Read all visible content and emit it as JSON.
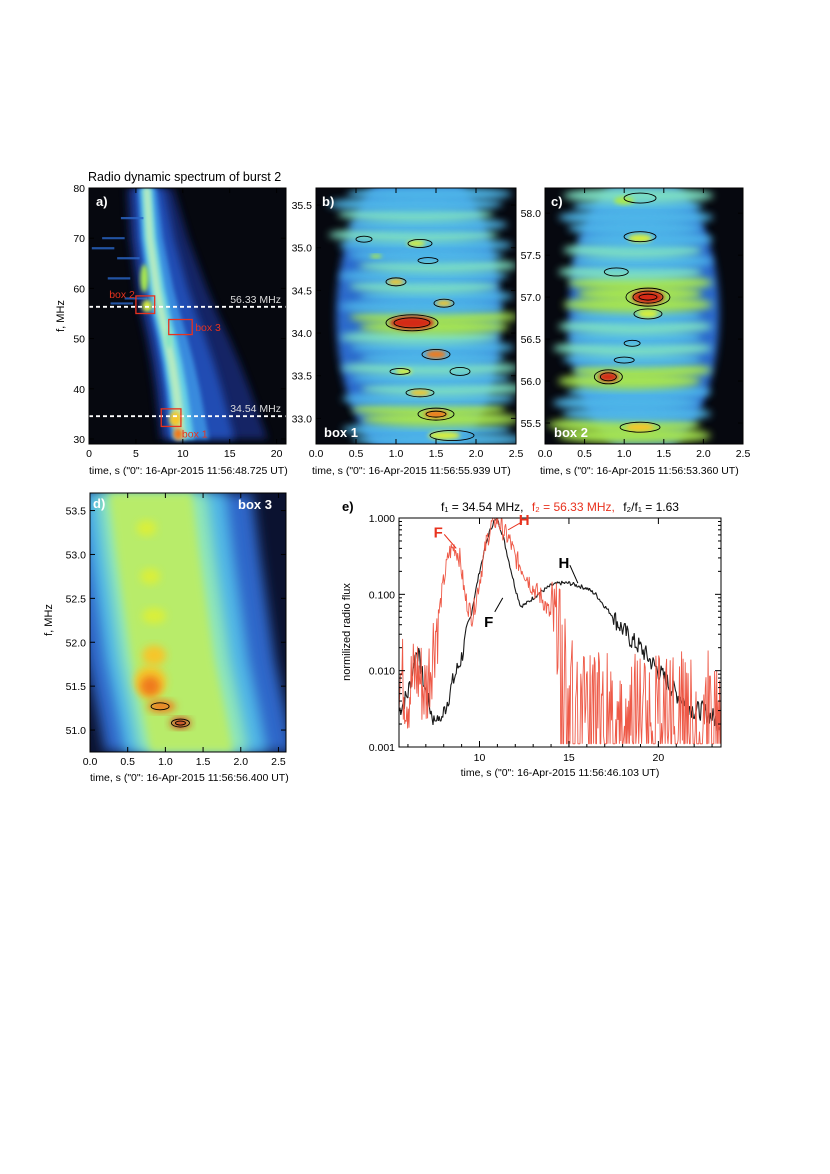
{
  "colors": {
    "panel_bg": "#06080f",
    "axis": "#000000",
    "box_red": "#e8321e",
    "dashed_white": "#ffffff",
    "marker_label_gray": "#dcdcdc",
    "f1_curve": "#1a1a1a",
    "f2_curve": "#ee5a48",
    "f2_label": "#e8321e"
  },
  "panel_a": {
    "title": "Radio dynamic spectrum of burst 2",
    "letter": "a)",
    "ylabel": "f, MHz",
    "xlabel": "time, s (\"0\": 16-Apr-2015 11:56:48.725 UT)",
    "xticks": [
      "0",
      "5",
      "10",
      "15",
      "20"
    ],
    "yticks": [
      "30",
      "40",
      "50",
      "60",
      "70",
      "80"
    ],
    "xlim": [
      0,
      21
    ],
    "ylim": [
      29,
      80
    ],
    "markers": [
      {
        "label": "56.33 MHz",
        "freq": 56.33
      },
      {
        "label": "34.54 MHz",
        "freq": 34.54
      }
    ],
    "boxes": [
      {
        "label": "box 1",
        "t0": 7.7,
        "t1": 9.8,
        "f0": 32.5,
        "f1": 36.0
      },
      {
        "label": "box 2",
        "t0": 5.0,
        "t1": 7.0,
        "f0": 55.0,
        "f1": 58.5
      },
      {
        "label": "box 3",
        "t0": 8.5,
        "t1": 11.0,
        "f0": 50.8,
        "f1": 53.8
      }
    ]
  },
  "panel_b": {
    "letter": "b)",
    "box_label": "box 1",
    "xlabel": "time, s (\"0\": 16-Apr-2015 11:56:55.939 UT)",
    "xticks": [
      "0.0",
      "0.5",
      "1.0",
      "1.5",
      "2.0",
      "2.5"
    ],
    "yticks": [
      "33.0",
      "33.5",
      "34.0",
      "34.5",
      "35.0",
      "35.5"
    ],
    "xlim": [
      0,
      2.5
    ],
    "ylim": [
      32.7,
      35.7
    ]
  },
  "panel_c": {
    "letter": "c)",
    "box_label": "box 2",
    "xlabel": "time, s (\"0\": 16-Apr-2015 11:56:53.360 UT)",
    "xticks": [
      "0.0",
      "0.5",
      "1.0",
      "1.5",
      "2.0",
      "2.5"
    ],
    "yticks": [
      "55.5",
      "56.0",
      "56.5",
      "57.0",
      "57.5",
      "58.0"
    ],
    "xlim": [
      0,
      2.5
    ],
    "ylim": [
      55.25,
      58.3
    ]
  },
  "panel_d": {
    "letter": "d)",
    "box_label": "box 3",
    "ylabel": "f, MHz",
    "xlabel": "time, s (\"0\": 16-Apr-2015 11:56:56.400 UT)",
    "xticks": [
      "0.0",
      "0.5",
      "1.0",
      "1.5",
      "2.0",
      "2.5"
    ],
    "yticks": [
      "51.0",
      "51.5",
      "52.0",
      "52.5",
      "53.0",
      "53.5"
    ],
    "xlim": [
      0,
      2.6
    ],
    "ylim": [
      50.75,
      53.7
    ]
  },
  "panel_e": {
    "letter": "e)",
    "title_f1": "f₁ = 34.54 MHz,",
    "title_f2": "f₂ = 56.33 MHz,",
    "title_ratio": "f₂/f₁ = 1.63",
    "ylabel": "normilized radio flux",
    "xlabel": "time, s (\"0\": 16-Apr-2015 11:56:46.103 UT)",
    "xticks": [
      "10",
      "15",
      "20"
    ],
    "yticks": [
      "0.001",
      "0.010",
      "0.100",
      "1.000"
    ],
    "annotations": [
      {
        "text": "F",
        "series": "f2",
        "t": 8.7,
        "flux": 0.4
      },
      {
        "text": "H",
        "series": "f2",
        "t": 11.6,
        "flux": 0.7
      },
      {
        "text": "H",
        "series": "f1",
        "t": 15.5,
        "flux": 0.14
      },
      {
        "text": "F",
        "series": "f1",
        "t": 11.3,
        "flux": 0.09
      }
    ]
  },
  "chart_data": [
    {
      "type": "heatmap",
      "panel": "a",
      "title": "Radio dynamic spectrum of burst 2",
      "xlabel": "time, s (\"0\": 16-Apr-2015 11:56:48.725 UT)",
      "ylabel": "f, MHz",
      "xlim": [
        0,
        21
      ],
      "ylim": [
        29,
        80
      ],
      "ridge": [
        {
          "f": 80,
          "t": 6.0
        },
        {
          "f": 70,
          "t": 6.3
        },
        {
          "f": 60,
          "t": 7.0
        },
        {
          "f": 55,
          "t": 7.5
        },
        {
          "f": 50,
          "t": 8.1
        },
        {
          "f": 45,
          "t": 8.6
        },
        {
          "f": 40,
          "t": 9.0
        },
        {
          "f": 35,
          "t": 9.3
        },
        {
          "f": 30,
          "t": 9.6
        }
      ]
    },
    {
      "type": "heatmap",
      "panel": "b",
      "xlabel": "time, s (\"0\": 16-Apr-2015 11:56:55.939 UT)",
      "xlim": [
        0,
        2.5
      ],
      "ylim": [
        32.7,
        35.7
      ],
      "peaks": [
        {
          "t": 1.2,
          "f": 34.12
        },
        {
          "t": 1.5,
          "f": 33.75
        },
        {
          "t": 1.5,
          "f": 33.05
        },
        {
          "t": 1.0,
          "f": 34.6
        },
        {
          "t": 1.6,
          "f": 34.35
        }
      ]
    },
    {
      "type": "heatmap",
      "panel": "c",
      "xlabel": "time, s (\"0\": 16-Apr-2015 11:56:53.360 UT)",
      "xlim": [
        0,
        2.5
      ],
      "ylim": [
        55.25,
        58.3
      ],
      "peaks": [
        {
          "t": 1.3,
          "f": 57.0
        },
        {
          "t": 0.8,
          "f": 56.05
        },
        {
          "t": 1.3,
          "f": 56.8
        },
        {
          "t": 1.2,
          "f": 55.45
        },
        {
          "t": 1.2,
          "f": 57.7
        }
      ]
    },
    {
      "type": "heatmap",
      "panel": "d",
      "xlabel": "time, s (\"0\": 16-Apr-2015 11:56:56.400 UT)",
      "ylabel": "f, MHz",
      "xlim": [
        0,
        2.6
      ],
      "ylim": [
        50.75,
        53.7
      ],
      "peaks": [
        {
          "t": 1.2,
          "f": 51.08
        },
        {
          "t": 0.9,
          "f": 51.27
        },
        {
          "t": 0.8,
          "f": 51.55
        }
      ]
    },
    {
      "type": "line",
      "panel": "e",
      "xlabel": "time, s (\"0\": 16-Apr-2015 11:56:46.103 UT)",
      "ylabel": "normilized radio flux",
      "yscale": "log",
      "xlim": [
        5.5,
        23.5
      ],
      "ylim": [
        0.001,
        1.0
      ],
      "series": [
        {
          "name": "f₁ = 34.54 MHz",
          "x": [
            5.5,
            6.0,
            6.5,
            7.0,
            7.5,
            7.8,
            8.2,
            8.5,
            9.0,
            9.5,
            10.0,
            10.5,
            10.8,
            11.0,
            11.3,
            11.6,
            12.0,
            12.3,
            12.6,
            13.0,
            13.5,
            14.0,
            14.5,
            15.0,
            15.5,
            16.0,
            16.5,
            17.0,
            17.5,
            18.0,
            18.5,
            19.0,
            19.5,
            20.0,
            20.5,
            21.0,
            21.5,
            22.0,
            22.5,
            23.0,
            23.5
          ],
          "y": [
            0.003,
            0.005,
            0.02,
            0.005,
            0.002,
            0.002,
            0.004,
            0.007,
            0.015,
            0.05,
            0.2,
            0.6,
            0.9,
            0.95,
            0.6,
            0.3,
            0.12,
            0.07,
            0.075,
            0.09,
            0.11,
            0.13,
            0.14,
            0.14,
            0.13,
            0.12,
            0.1,
            0.07,
            0.05,
            0.035,
            0.025,
            0.02,
            0.014,
            0.01,
            0.007,
            0.005,
            0.004,
            0.003,
            0.003,
            0.0025,
            0.002
          ]
        },
        {
          "name": "f₂ = 56.33 MHz",
          "x": [
            5.5,
            6.0,
            6.5,
            7.0,
            7.5,
            7.8,
            8.0,
            8.3,
            8.6,
            8.9,
            9.2,
            9.6,
            10.0,
            10.4,
            10.7,
            11.0,
            11.3,
            11.7,
            12.0,
            12.5,
            13.0,
            13.5,
            14.0,
            14.5,
            15.0,
            15.5,
            16.0,
            17.0,
            18.0,
            19.0,
            20.0,
            21.0,
            22.0,
            23.0,
            23.5
          ],
          "y": [
            0.01,
            0.005,
            0.01,
            0.005,
            0.03,
            0.07,
            0.15,
            0.35,
            0.42,
            0.3,
            0.09,
            0.05,
            0.15,
            0.5,
            0.85,
            0.95,
            0.7,
            0.5,
            0.3,
            0.2,
            0.12,
            0.09,
            0.05,
            0.03,
            0.015,
            0.008,
            0.006,
            0.005,
            0.004,
            0.005,
            0.004,
            0.005,
            0.004,
            0.005,
            0.004
          ]
        }
      ]
    }
  ]
}
